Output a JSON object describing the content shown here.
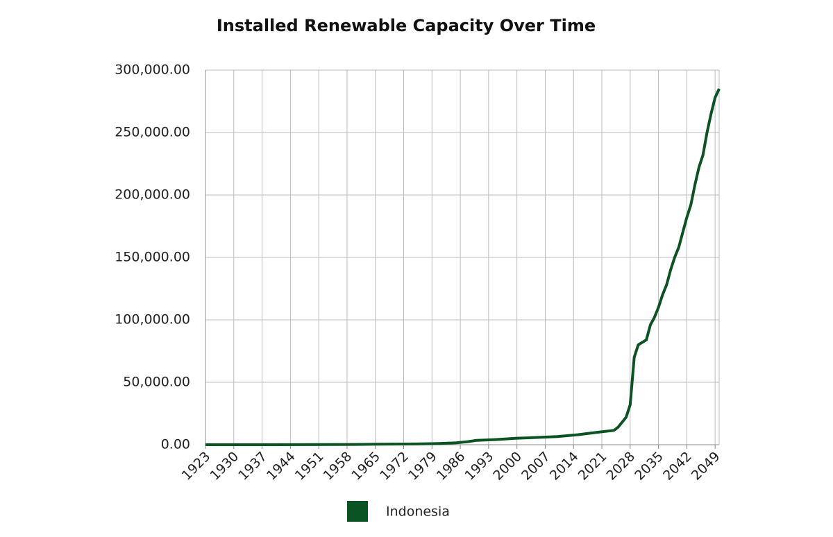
{
  "chart_data": {
    "type": "line",
    "title": "Installed Renewable Capacity Over Time",
    "x": [
      1923,
      1940,
      1960,
      1965,
      1975,
      1980,
      1985,
      1988,
      1990,
      1995,
      2000,
      2005,
      2010,
      2015,
      2020,
      2024,
      2025,
      2026,
      2027,
      2028,
      2029,
      2030,
      2031,
      2032,
      2033,
      2034,
      2035,
      2036,
      2037,
      2038,
      2039,
      2040,
      2041,
      2042,
      2043,
      2044,
      2045,
      2046,
      2047,
      2048,
      2049,
      2050
    ],
    "series": [
      {
        "name": "Indonesia",
        "color": "#0b5323",
        "values": [
          0,
          0,
          200,
          400,
          600,
          900,
          1500,
          2500,
          3500,
          4200,
          5200,
          5800,
          6500,
          8000,
          10000,
          11500,
          14000,
          18000,
          22000,
          32000,
          70000,
          80000,
          82000,
          84000,
          96000,
          102000,
          110000,
          120000,
          128000,
          140000,
          150000,
          158000,
          170000,
          182000,
          192000,
          208000,
          222000,
          232000,
          250000,
          265000,
          278000,
          285000
        ]
      }
    ],
    "xlim": [
      1923,
      2050
    ],
    "xticks": [
      1923,
      1930,
      1937,
      1944,
      1951,
      1958,
      1965,
      1972,
      1979,
      1986,
      1993,
      2000,
      2007,
      2014,
      2021,
      2028,
      2035,
      2042,
      2049
    ],
    "ylim": [
      0,
      300000
    ],
    "yticks": [
      {
        "value": 0,
        "label": "0.00"
      },
      {
        "value": 50000,
        "label": "50,000.00"
      },
      {
        "value": 100000,
        "label": "100,000.00"
      },
      {
        "value": 150000,
        "label": "150,000.00"
      },
      {
        "value": 200000,
        "label": "200,000.00"
      },
      {
        "value": 250000,
        "label": "250,000.00"
      },
      {
        "value": 300000,
        "label": "300,000.00"
      }
    ],
    "grid": true
  }
}
